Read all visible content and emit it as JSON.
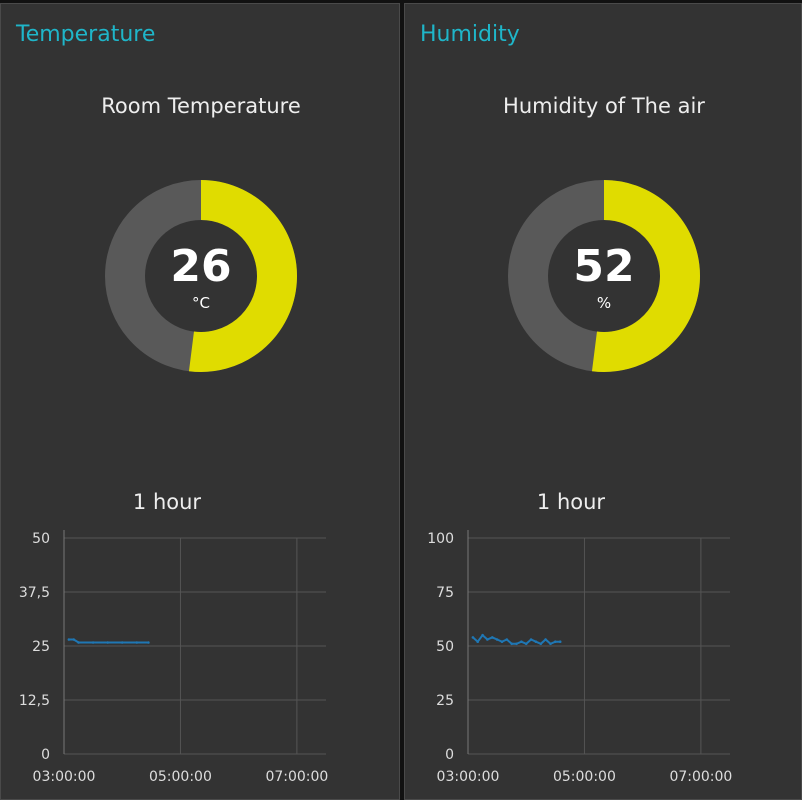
{
  "colors": {
    "group_title": "#1fb6c9",
    "gauge_fill": "#e0dc00",
    "gauge_track": "#595959",
    "series_line": "#1f77b4"
  },
  "groups": [
    {
      "title": "Temperature",
      "gauge": {
        "title": "Room Temperature",
        "value": "26",
        "unit": "°C",
        "fraction": 0.52
      },
      "chart_title": "1 hour"
    },
    {
      "title": "Humidity",
      "gauge": {
        "title": "Humidity of The air",
        "value": "52",
        "unit": "%",
        "fraction": 0.52
      },
      "chart_title": "1 hour"
    }
  ],
  "chart_data": [
    {
      "type": "line",
      "title": "1 hour",
      "xlabel": "",
      "ylabel": "",
      "x_ticks": [
        "03:00:00",
        "05:00:00",
        "07:00:00"
      ],
      "y_ticks": [
        "0",
        "12,5",
        "25",
        "37,5",
        "50"
      ],
      "xlim": [
        "03:00:00",
        "07:30:00"
      ],
      "ylim": [
        0,
        50
      ],
      "grid": true,
      "series": [
        {
          "x": [
            "03:05",
            "03:10",
            "03:15",
            "03:30",
            "03:45",
            "04:00",
            "04:15",
            "04:27"
          ],
          "y": [
            26.5,
            26.5,
            25.8,
            25.8,
            25.8,
            25.8,
            25.8,
            25.8
          ]
        }
      ]
    },
    {
      "type": "line",
      "title": "1 hour",
      "xlabel": "",
      "ylabel": "",
      "x_ticks": [
        "03:00:00",
        "05:00:00",
        "07:00:00"
      ],
      "y_ticks": [
        "0",
        "25",
        "50",
        "75",
        "100"
      ],
      "xlim": [
        "03:00:00",
        "07:30:00"
      ],
      "ylim": [
        0,
        100
      ],
      "grid": true,
      "series": [
        {
          "x": [
            "03:05",
            "03:10",
            "03:15",
            "03:20",
            "03:25",
            "03:30",
            "03:35",
            "03:40",
            "03:45",
            "03:50",
            "03:55",
            "04:00",
            "04:05",
            "04:10",
            "04:15",
            "04:20",
            "04:25",
            "04:30",
            "04:35"
          ],
          "y": [
            54,
            52,
            55,
            53,
            54,
            53,
            52,
            53,
            51,
            51,
            52,
            51,
            53,
            52,
            51,
            53,
            51,
            52,
            52
          ]
        }
      ]
    }
  ]
}
